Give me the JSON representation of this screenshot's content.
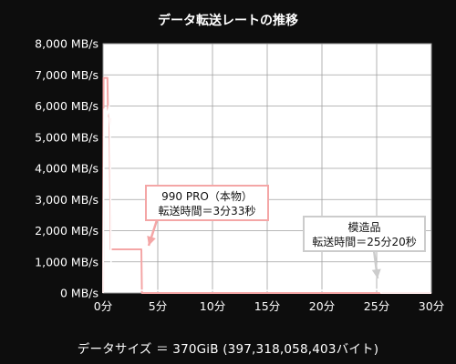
{
  "chart_data": {
    "type": "line",
    "title": "データ転送レートの推移",
    "xlim": [
      0,
      30
    ],
    "ylim": [
      0,
      8000
    ],
    "x_ticks": [
      0,
      5,
      10,
      15,
      20,
      25,
      30
    ],
    "x_tick_labels": [
      "0分",
      "5分",
      "10分",
      "15分",
      "20分",
      "25分",
      "30分"
    ],
    "y_ticks": [
      0,
      1000,
      2000,
      3000,
      4000,
      5000,
      6000,
      7000,
      8000
    ],
    "y_tick_labels": [
      "0 MB/s",
      "1,000 MB/s",
      "2,000 MB/s",
      "3,000 MB/s",
      "4,000 MB/s",
      "5,000 MB/s",
      "6,000 MB/s",
      "7,000 MB/s",
      "8,000 MB/s"
    ],
    "grid": true,
    "series": [
      {
        "name": "990 PRO（本物）",
        "color": "#f4a6a6",
        "points": [
          [
            0,
            0
          ],
          [
            0.05,
            6900
          ],
          [
            0.4,
            6900
          ],
          [
            0.45,
            5800
          ],
          [
            0.6,
            5600
          ],
          [
            0.7,
            1400
          ],
          [
            3.5,
            1400
          ],
          [
            3.55,
            0
          ],
          [
            30,
            0
          ]
        ]
      },
      {
        "name": "模造品",
        "color": "#ffffff",
        "points": [
          [
            0,
            0
          ],
          [
            0.1,
            5900
          ],
          [
            0.3,
            5900
          ],
          [
            0.4,
            5700
          ],
          [
            0.55,
            6000
          ],
          [
            0.65,
            5300
          ],
          [
            0.75,
            100
          ],
          [
            5,
            80
          ],
          [
            10,
            90
          ],
          [
            15,
            80
          ],
          [
            20,
            90
          ],
          [
            21.5,
            60
          ],
          [
            22,
            100
          ],
          [
            23.5,
            120
          ],
          [
            25.3,
            110
          ],
          [
            25.4,
            0
          ],
          [
            30,
            0
          ]
        ]
      }
    ],
    "annotations": [
      {
        "lines": [
          "990 PRO（本物）",
          "転送時間＝3分33秒"
        ],
        "color": "#f4a6a6",
        "target_x": 3.55
      },
      {
        "lines": [
          "模造品",
          "転送時間＝25分20秒"
        ],
        "color": "#cccccc",
        "target_x": 25.33
      }
    ]
  },
  "footer_text": "データサイズ ＝ 370GiB (397,318,058,403バイト)"
}
